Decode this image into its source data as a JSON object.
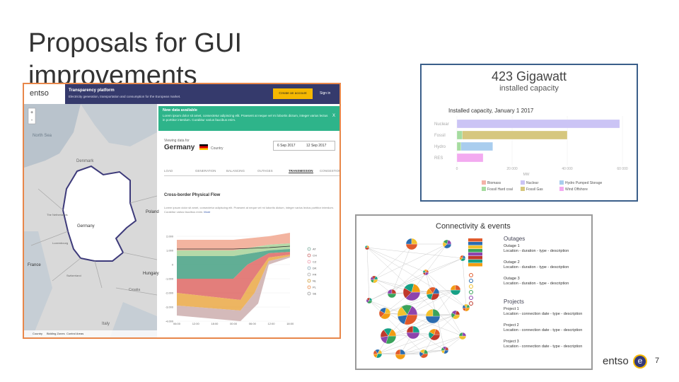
{
  "slide": {
    "title": "Proposals for GUI improvements",
    "page_number": "7",
    "logo": {
      "word": "entso",
      "mark": "e"
    }
  },
  "platform": {
    "logo": "entso",
    "header": {
      "title": "Transparency platform",
      "subtitle": "Electricity generation, transportation and consumption for the European market.",
      "button": "Create an account",
      "sign_in": "Sign in"
    },
    "map": {
      "labels": [
        "North Sea",
        "Denmark",
        "Germany",
        "France",
        "Poland",
        "Switzerland",
        "Hungary",
        "Croatia",
        "Italy",
        "The Netherlands",
        "Luxembourg"
      ],
      "footer": [
        "Country",
        "Bidding Zones",
        "Control Areas"
      ]
    },
    "banner": {
      "title": "New data available",
      "text": "Lorem ipsum dolor sit amet, consectetur adipiscing elit. Praesent at neque vel mi lobortis dictum, integer varius lectus in porttitor interdum. Curabitur varius faucibus enim.",
      "close": "X"
    },
    "viewing": {
      "label": "Viewing data for",
      "country": "Germany",
      "kind": "Country",
      "from": "6 Sep 2017",
      "to": "12 Sep 2017"
    },
    "tabs": [
      "LOAD",
      "GENERATION",
      "BALANCING",
      "OUTAGES",
      "TRANSMISSION",
      "CONGESTION"
    ],
    "chart": {
      "title": "Cross-border Physical Flow",
      "text": "Lorem ipsum dolor sit amet, consectetur adipiscing elit. Praesent at neque vel mi lobortis dictum, integer varius lectus porttitor interdum. Curabitur varius faucibus enim.",
      "more": "More",
      "yticks": [
        "2,000",
        "1,000",
        "0",
        "-1,000",
        "-2,000",
        "-3,000",
        "-4,000"
      ],
      "xticks": [
        "06:00",
        "12:00",
        "18:00",
        "00:00",
        "06:00",
        "12:00",
        "18:00"
      ],
      "legend": [
        "AT",
        "CH",
        "CZ",
        "DK",
        "FR",
        "NL",
        "PL",
        "SE"
      ]
    }
  },
  "capacity": {
    "headline": "423 Gigawatt",
    "subheadline": "installed capacity",
    "title": "Installed capacity, January 1 2017",
    "axis_label": "MW",
    "xticks": [
      {
        "value": 0,
        "label": "0"
      },
      {
        "value": 20000,
        "label": "20 000"
      },
      {
        "value": 40000,
        "label": "40 000"
      },
      {
        "value": 60000,
        "label": "60 000"
      }
    ],
    "xlim": [
      0,
      60000
    ],
    "legend": [
      {
        "name": "Biomass",
        "color": "#f4b2a8"
      },
      {
        "name": "Fossil Hard coal",
        "color": "#a6dca0"
      },
      {
        "name": "Nuclear",
        "color": "#cbc4f5"
      },
      {
        "name": "Fossil Gas",
        "color": "#d6c77e"
      },
      {
        "name": "Hydro Pumped Storage",
        "color": "#a9cdee"
      },
      {
        "name": "Wind Offshore",
        "color": "#f3aaf0"
      }
    ],
    "rows": [
      {
        "name": "Nuclear",
        "segments": [
          {
            "legend": 2,
            "value": 59000
          }
        ]
      },
      {
        "name": "Fossil",
        "segments": [
          {
            "legend": 1,
            "value": 2000
          },
          {
            "legend": 3,
            "value": 38000
          }
        ]
      },
      {
        "name": "Hydro",
        "segments": [
          {
            "legend": 1,
            "value": 1500
          },
          {
            "legend": 4,
            "value": 11500
          }
        ]
      },
      {
        "name": "RES",
        "segments": [
          {
            "legend": 5,
            "value": 9500
          }
        ]
      }
    ]
  },
  "connectivity": {
    "title": "Connectivity & events",
    "outages_title": "Outages",
    "outages": [
      {
        "name": "Outage 1",
        "detail": "Location - duration - type - description"
      },
      {
        "name": "Outage 2",
        "detail": "Location - duration - type - description"
      },
      {
        "name": "Outage 3",
        "detail": "Location - duration - type - description"
      }
    ],
    "projects_title": "Projects",
    "projects": [
      {
        "name": "Project 1",
        "detail": "Location - connection date - type - description"
      },
      {
        "name": "Project 2",
        "detail": "Location - connection date - type - description"
      },
      {
        "name": "Project 3",
        "detail": "Location - connection date - type - description"
      }
    ]
  }
}
